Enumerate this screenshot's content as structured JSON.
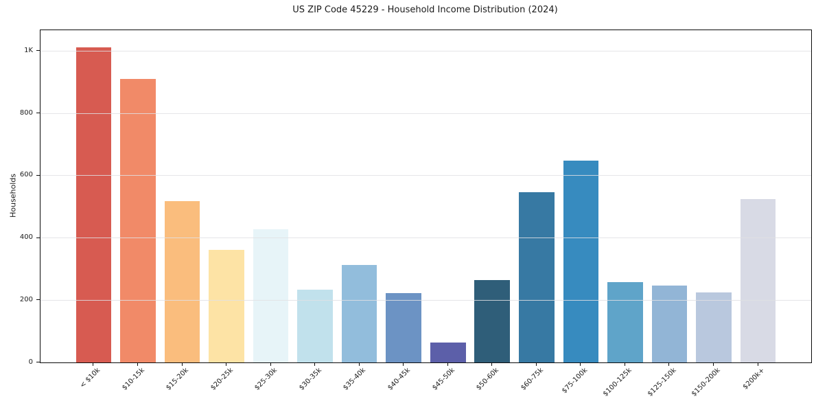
{
  "figure": {
    "background": "#ffffff"
  },
  "chart_data": {
    "type": "bar",
    "title": "US ZIP Code 45229 - Household Income Distribution (2024)",
    "xlabel": "",
    "ylabel": "Households",
    "categories": [
      "< $10k",
      "$10-15k",
      "$15-20k",
      "$20-25k",
      "$25-30k",
      "$30-35k",
      "$35-40k",
      "$40-45k",
      "$45-50k",
      "$50-60k",
      "$60-75k",
      "$75-100k",
      "$100-125k",
      "$125-150k",
      "$150-200k",
      "$200k+"
    ],
    "values": [
      1012,
      910,
      519,
      361,
      428,
      234,
      313,
      223,
      65,
      264,
      546,
      648,
      257,
      248,
      226,
      524
    ],
    "bar_colors": [
      "#d75b51",
      "#f18a68",
      "#fabd7d",
      "#fde3a5",
      "#e7f4f8",
      "#c1e1ec",
      "#92bddc",
      "#6c93c4",
      "#5c5fa9",
      "#2f5e79",
      "#3779a3",
      "#378bbf",
      "#5fa4c9",
      "#92b5d6",
      "#b9c8de",
      "#d8dae5"
    ],
    "ylim": [
      0,
      1067
    ],
    "yticks": [
      {
        "value": 0,
        "label": "0"
      },
      {
        "value": 200,
        "label": "200"
      },
      {
        "value": 400,
        "label": "400"
      },
      {
        "value": 600,
        "label": "600"
      },
      {
        "value": 800,
        "label": "800"
      },
      {
        "value": 1000,
        "label": "1K"
      }
    ],
    "grid": "horizontal",
    "legend_position": "none",
    "x_tick_rotation_deg": 45
  }
}
